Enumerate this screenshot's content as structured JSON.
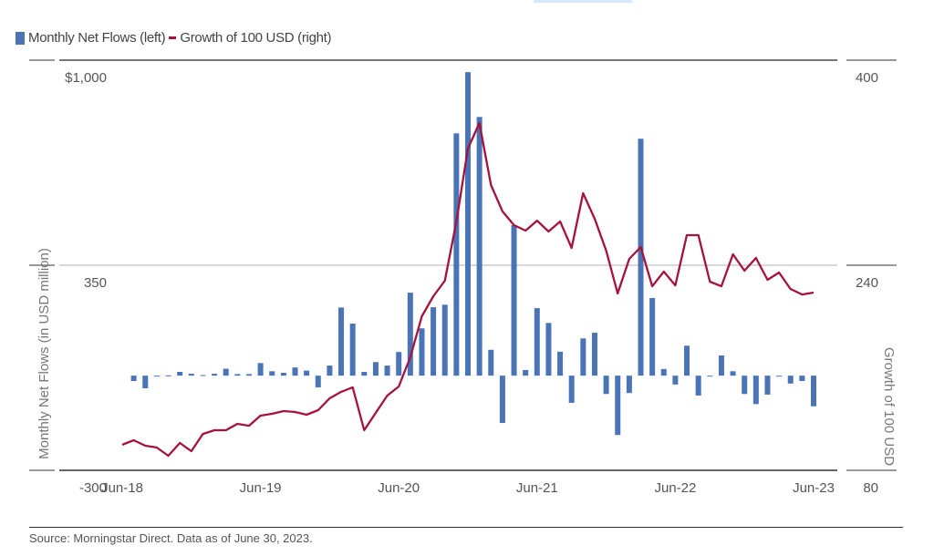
{
  "legend": {
    "bars": "Monthly Net Flows (left)",
    "line": "Growth of 100 USD (right)"
  },
  "source": "Source: Morningstar Direct. Data as of June 30, 2023.",
  "colors": {
    "bars": "#4a74b5",
    "line": "#a5123c",
    "grid": "#cccccc"
  },
  "chart_data": {
    "type": "bar+line",
    "left_axis": {
      "label": "Monthly Net Flows (in USD million)",
      "range": [
        -300,
        1000
      ],
      "ticks": [
        1000,
        350,
        -300
      ],
      "tick_labels": [
        "$1,000",
        "350",
        "-300"
      ]
    },
    "right_axis": {
      "label": "Growth of 100 USD",
      "range": [
        80,
        400
      ],
      "ticks": [
        400,
        240,
        80
      ],
      "tick_labels": [
        "400",
        "240",
        "80"
      ]
    },
    "x_tick_labels": [
      "Jun-18",
      "Jun-19",
      "Jun-20",
      "Jun-21",
      "Jun-22",
      "Jun-23"
    ],
    "x": [
      "2018-06",
      "2018-07",
      "2018-08",
      "2018-09",
      "2018-10",
      "2018-11",
      "2018-12",
      "2019-01",
      "2019-02",
      "2019-03",
      "2019-04",
      "2019-05",
      "2019-06",
      "2019-07",
      "2019-08",
      "2019-09",
      "2019-10",
      "2019-11",
      "2019-12",
      "2020-01",
      "2020-02",
      "2020-03",
      "2020-04",
      "2020-05",
      "2020-06",
      "2020-07",
      "2020-08",
      "2020-09",
      "2020-10",
      "2020-11",
      "2020-12",
      "2021-01",
      "2021-02",
      "2021-03",
      "2021-04",
      "2021-05",
      "2021-06",
      "2021-07",
      "2021-08",
      "2021-09",
      "2021-10",
      "2021-11",
      "2021-12",
      "2022-01",
      "2022-02",
      "2022-03",
      "2022-04",
      "2022-05",
      "2022-06",
      "2022-07",
      "2022-08",
      "2022-09",
      "2022-10",
      "2022-11",
      "2022-12",
      "2023-01",
      "2023-02",
      "2023-03",
      "2023-04",
      "2023-05",
      "2023-06"
    ],
    "grid": true,
    "legend_position": "top-left",
    "series": [
      {
        "name": "Monthly Net Flows (left)",
        "type": "bar",
        "axis": "left",
        "values": [
          null,
          -17,
          -40,
          -2,
          1,
          12,
          6,
          2,
          6,
          22,
          5,
          5,
          40,
          14,
          9,
          26,
          16,
          -37,
          32,
          216,
          165,
          12,
          43,
          32,
          75,
          263,
          150,
          217,
          225,
          768,
          962,
          820,
          82,
          -150,
          477,
          18,
          214,
          167,
          76,
          -86,
          118,
          136,
          -58,
          -188,
          -55,
          751,
          246,
          21,
          -28,
          95,
          -63,
          0,
          64,
          14,
          -58,
          -90,
          -60,
          0,
          -25,
          -17,
          -97
        ]
      },
      {
        "name": "Growth of 100 USD (right)",
        "type": "line",
        "axis": "right",
        "values": [
          100,
          103.5,
          99.2,
          97.8,
          91.4,
          101.3,
          94.9,
          108.4,
          111.3,
          111.3,
          116.3,
          114.8,
          122.7,
          124.1,
          126.2,
          125.5,
          123.4,
          126.9,
          136.2,
          141.2,
          144.7,
          111.3,
          124.8,
          138.3,
          145.4,
          168.2,
          200.2,
          215.8,
          227.9,
          274.1,
          331,
          350.9,
          302.6,
          282,
          271.3,
          267,
          274.8,
          266.3,
          274.1,
          253.5,
          296.2,
          276.3,
          251.4,
          218,
          245,
          254.2,
          223.6,
          235,
          224.3,
          263.5,
          263.5,
          227.2,
          223.6,
          248.5,
          235.7,
          245.7,
          228.6,
          234.3,
          221.5,
          217.2,
          218.7
        ]
      }
    ]
  }
}
